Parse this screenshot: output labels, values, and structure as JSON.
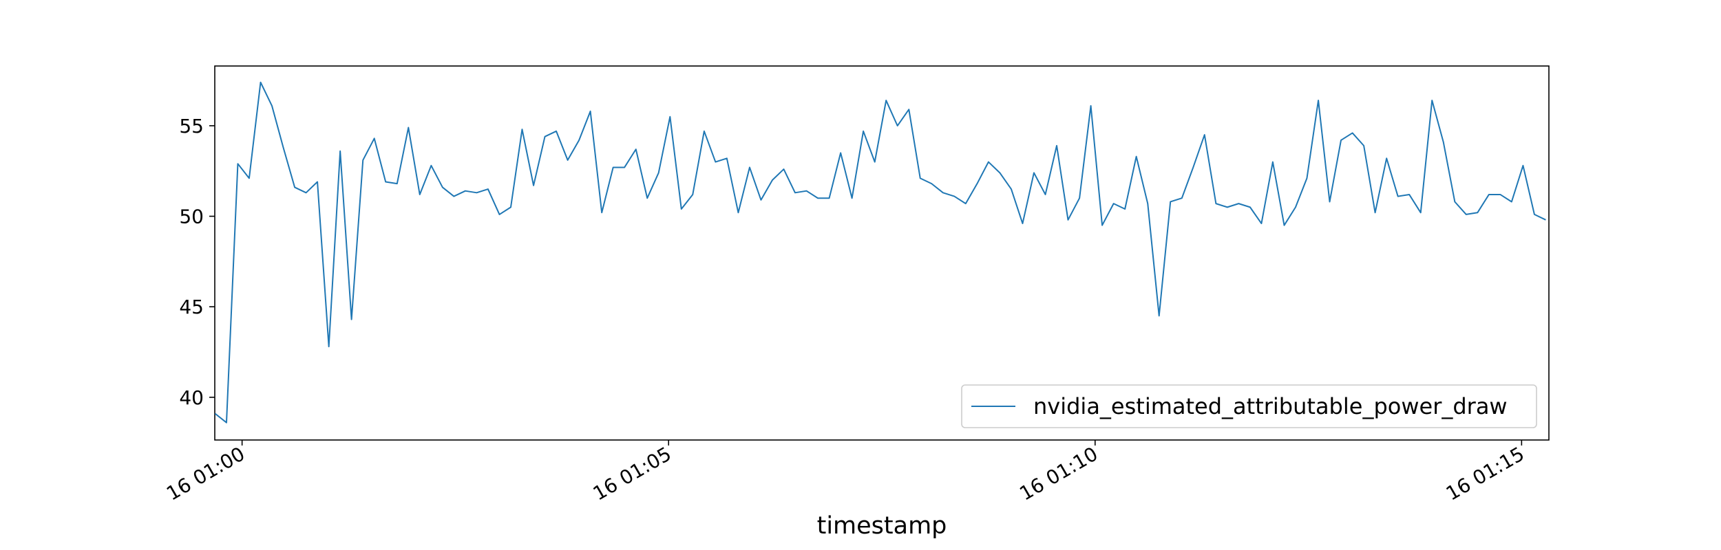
{
  "chart_data": {
    "type": "line",
    "xlabel": "timestamp",
    "x": [
      -0.317,
      -0.183,
      -0.05,
      0.083,
      0.217,
      0.35,
      0.483,
      0.617,
      0.75,
      0.883,
      1.017,
      1.15,
      1.283,
      1.417,
      1.55,
      1.683,
      1.817,
      1.95,
      2.083,
      2.217,
      2.35,
      2.483,
      2.617,
      2.75,
      2.883,
      3.017,
      3.15,
      3.283,
      3.417,
      3.55,
      3.683,
      3.817,
      3.95,
      4.083,
      4.217,
      4.35,
      4.483,
      4.617,
      4.75,
      4.883,
      5.017,
      5.15,
      5.283,
      5.417,
      5.55,
      5.683,
      5.817,
      5.95,
      6.083,
      6.217,
      6.35,
      6.483,
      6.617,
      6.75,
      6.883,
      7.017,
      7.15,
      7.283,
      7.417,
      7.55,
      7.683,
      7.817,
      7.95,
      8.083,
      8.217,
      8.35,
      8.483,
      8.617,
      8.75,
      8.883,
      9.017,
      9.15,
      9.283,
      9.417,
      9.55,
      9.683,
      9.817,
      9.95,
      10.083,
      10.217,
      10.35,
      10.483,
      10.617,
      10.75,
      10.883,
      11.017,
      11.15,
      11.283,
      11.417,
      11.55,
      11.683,
      11.817,
      11.95,
      12.083,
      12.217,
      12.35,
      12.483,
      12.617,
      12.75,
      12.883,
      13.017,
      13.15,
      13.283,
      13.417,
      13.55,
      13.683,
      13.817,
      13.95,
      14.083,
      14.217,
      14.35,
      14.483,
      14.617,
      14.75,
      14.883,
      15.017,
      15.15,
      15.283
    ],
    "series": [
      {
        "name": "nvidia_estimated_attributable_power_draw",
        "color": "#1f77b4",
        "values": [
          39.1,
          38.6,
          52.9,
          52.1,
          57.4,
          56.1,
          53.8,
          51.6,
          51.3,
          51.9,
          42.8,
          53.6,
          44.3,
          53.1,
          54.3,
          51.9,
          51.8,
          54.9,
          51.2,
          52.8,
          51.6,
          51.1,
          51.4,
          51.3,
          51.5,
          50.1,
          50.5,
          54.8,
          51.7,
          54.4,
          54.7,
          53.1,
          54.2,
          55.8,
          50.2,
          52.7,
          52.7,
          53.7,
          51.0,
          52.4,
          55.5,
          50.4,
          51.2,
          54.7,
          53.0,
          53.2,
          50.2,
          52.7,
          50.9,
          52.0,
          52.6,
          51.3,
          51.4,
          51.0,
          51.0,
          53.5,
          51.0,
          54.7,
          53.0,
          56.4,
          55.0,
          55.9,
          52.1,
          51.8,
          51.3,
          51.1,
          50.7,
          51.8,
          53.0,
          52.4,
          51.5,
          49.6,
          52.4,
          51.2,
          53.9,
          49.8,
          51.0,
          56.1,
          49.5,
          50.7,
          50.4,
          53.3,
          50.7,
          44.5,
          50.8,
          51.0,
          52.7,
          54.5,
          50.7,
          50.5,
          50.7,
          50.5,
          49.6,
          53.0,
          49.5,
          50.5,
          52.1,
          56.4,
          50.8,
          54.2,
          54.6,
          53.9,
          50.2,
          53.2,
          51.1,
          51.2,
          50.2,
          56.4,
          54.1,
          50.8,
          50.1,
          50.2,
          51.2,
          51.2,
          50.8,
          52.8,
          50.1,
          49.8
        ]
      }
    ],
    "xlim": [
      -0.32,
      15.32
    ],
    "xticks": [
      {
        "value": 0,
        "label": "16 01:00"
      },
      {
        "value": 5,
        "label": "16 01:05"
      },
      {
        "value": 10,
        "label": "16 01:10"
      },
      {
        "value": 15,
        "label": "16 01:15"
      }
    ],
    "ylim": [
      37.64,
      58.3
    ],
    "yticks": [
      40,
      45,
      50,
      55
    ],
    "legend": "lower right"
  }
}
